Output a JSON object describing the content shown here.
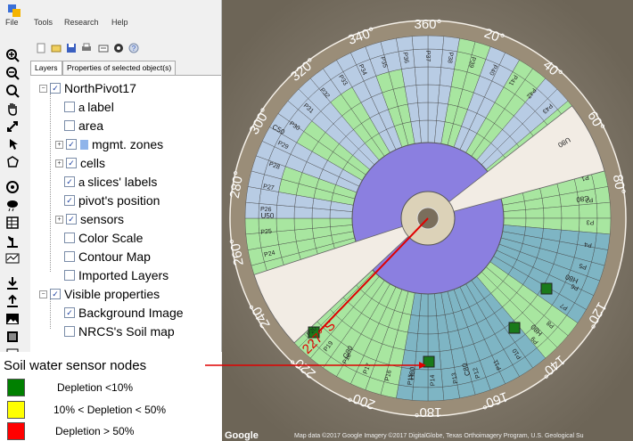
{
  "menu": {
    "file": "File",
    "tools": "Tools",
    "research": "Research",
    "help": "Help"
  },
  "tabs": [
    "Layers",
    "Properties of selected object(s)"
  ],
  "tree": {
    "root": "NorthPivot17",
    "items": [
      {
        "label": "label",
        "prefix": "a",
        "checked": false,
        "expandable": false
      },
      {
        "label": "area",
        "checked": false,
        "expandable": false
      },
      {
        "label": "mgmt. zones",
        "checked": true,
        "expandable": true,
        "swatch": "#8fb4ea"
      },
      {
        "label": "cells",
        "checked": true,
        "expandable": true
      },
      {
        "label": "slices' labels",
        "prefix": "a",
        "checked": true,
        "expandable": false
      },
      {
        "label": "pivot's position",
        "checked": true,
        "expandable": false
      },
      {
        "label": "sensors",
        "checked": true,
        "expandable": true
      },
      {
        "label": "Color Scale",
        "checked": false,
        "expandable": false
      },
      {
        "label": "Contour Map",
        "checked": false,
        "expandable": false
      },
      {
        "label": "Imported Layers",
        "checked": false,
        "expandable": false
      }
    ],
    "visible_root": "Visible properties",
    "visible_items": [
      {
        "label": "Background Image",
        "checked": true
      },
      {
        "label": "NRCS's Soil map",
        "checked": false
      }
    ]
  },
  "annotation": "Soil water sensor nodes",
  "legend": [
    {
      "label": "Depletion <10%",
      "color": "#008000"
    },
    {
      "label": "10% < Depletion < 50%",
      "color": "#ffff00"
    },
    {
      "label": "Depletion > 50%",
      "color": "#ff0000"
    }
  ],
  "map": {
    "pivot_angle": "227° S",
    "compass": [
      "360°",
      "20°",
      "40°",
      "60°",
      "80°",
      "120°",
      "140°",
      "160°",
      "180°",
      "200°",
      "220°",
      "240°",
      "260°",
      "280°",
      "300°",
      "320°",
      "340°"
    ],
    "labels_upper": [
      "P1",
      "P2",
      "P3",
      "P4",
      "P5",
      "P6",
      "P7",
      "P8",
      "P9",
      "P10",
      "P11",
      "P12",
      "P13",
      "P14",
      "P15",
      "P16",
      "P17",
      "P18",
      "P19",
      "P20",
      "P21",
      "P22",
      "P23",
      "P24",
      "P25",
      "P26",
      "P27",
      "P28",
      "P29",
      "P30",
      "P31",
      "P32",
      "P33",
      "P34",
      "P35",
      "P36",
      "P37",
      "P38",
      "P39",
      "P40",
      "P41",
      "P42",
      "P43",
      "P44"
    ],
    "zone_labels": [
      "H80",
      "C80",
      "U80",
      "C50",
      "U50",
      "H80",
      "C80",
      "H80",
      "C80"
    ],
    "copyright": "Map data ©2017 Google  Imagery ©2017 DigitalGlobe, Texas Orthoimagery Program, U.S. Geological Su",
    "google": "Google"
  },
  "colors": {
    "green_zone": "#a8e6a0",
    "blue_zone": "#b8cce4",
    "teal_zone": "#7eb5c4",
    "center": "#8b7fe0",
    "bare": "#f0e8e0"
  }
}
